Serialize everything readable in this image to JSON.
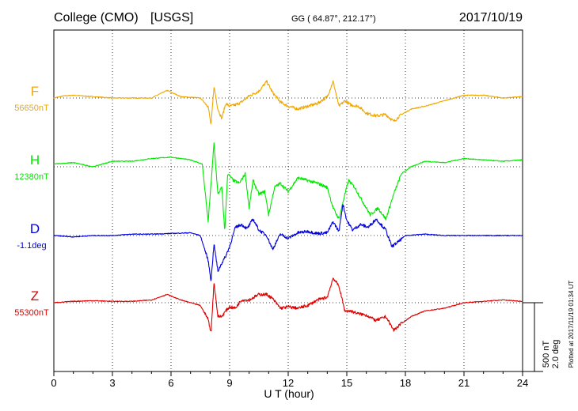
{
  "header": {
    "station": "College (CMO)",
    "source": "[USGS]",
    "coords": "GG ( 64.87°, 212.17°)",
    "date": "2017/10/19"
  },
  "footer": {
    "plotted": "Plotted at 2017/11/19 01:34 UT",
    "scale_nt": "500 nT",
    "scale_deg": "2.0 deg"
  },
  "chart_data": {
    "type": "line",
    "title": "College (CMO)  [USGS]",
    "xlabel": "U T (hour)",
    "xlim": [
      0,
      24
    ],
    "xticks": [
      "0",
      "3",
      "6",
      "9",
      "12",
      "15",
      "18",
      "21",
      "24"
    ],
    "grid": true,
    "series": [
      {
        "name": "F",
        "baseline_label": "56650nT",
        "color": "#f0a800",
        "x": [
          0,
          0.5,
          1,
          2,
          3,
          4,
          5,
          5.8,
          6.5,
          7.5,
          7.9,
          8.05,
          8.2,
          8.4,
          8.6,
          8.8,
          9.0,
          9.3,
          9.6,
          10.0,
          10.5,
          10.9,
          11.2,
          11.6,
          12.0,
          12.5,
          13.0,
          13.5,
          14.0,
          14.3,
          14.6,
          14.9,
          15.2,
          15.6,
          16.0,
          16.5,
          17.0,
          17.4,
          17.8,
          18.3,
          19.0,
          20.0,
          21.0,
          22.0,
          23.0,
          24.0
        ],
        "y": [
          0,
          15,
          20,
          10,
          0,
          0,
          0,
          55,
          10,
          0,
          -60,
          -200,
          85,
          -80,
          -150,
          -40,
          -60,
          -50,
          -30,
          15,
          50,
          120,
          40,
          -30,
          -60,
          -80,
          -60,
          -40,
          10,
          120,
          -60,
          -20,
          -50,
          -60,
          -110,
          -130,
          -120,
          -170,
          -120,
          -80,
          -60,
          -20,
          20,
          20,
          0,
          10
        ]
      },
      {
        "name": "H",
        "baseline_label": "12380nT",
        "color": "#00e800",
        "x": [
          0,
          1,
          2,
          3,
          4,
          5,
          6,
          7,
          7.6,
          7.9,
          8.05,
          8.2,
          8.4,
          8.6,
          8.75,
          8.9,
          9.2,
          9.5,
          9.8,
          10.0,
          10.2,
          10.5,
          10.8,
          11.0,
          11.3,
          11.6,
          12.0,
          12.5,
          13.0,
          13.5,
          14.0,
          14.3,
          14.6,
          14.9,
          15.1,
          15.4,
          15.8,
          16.2,
          16.6,
          17.0,
          17.4,
          17.8,
          18.3,
          19.0,
          20.0,
          21.0,
          22.0,
          23.0,
          24.0
        ],
        "y": [
          20,
          30,
          0,
          40,
          40,
          60,
          70,
          50,
          20,
          -400,
          -120,
          170,
          -200,
          -150,
          -470,
          -50,
          -100,
          -120,
          -50,
          -300,
          -100,
          -200,
          -180,
          -350,
          -150,
          -120,
          -180,
          -80,
          -100,
          -120,
          -150,
          -300,
          -380,
          -200,
          -100,
          -150,
          -250,
          -350,
          -300,
          -380,
          -200,
          -50,
          0,
          40,
          30,
          60,
          50,
          40,
          50
        ]
      },
      {
        "name": "D",
        "baseline_label": "-1.1deg",
        "color": "#0000e0",
        "x": [
          0,
          1,
          2,
          3,
          4,
          5,
          6,
          7,
          7.5,
          7.9,
          8.05,
          8.2,
          8.4,
          8.6,
          8.8,
          9.0,
          9.3,
          9.6,
          9.9,
          10.2,
          10.5,
          10.9,
          11.2,
          11.6,
          12.0,
          12.5,
          13.0,
          13.5,
          14.0,
          14.3,
          14.6,
          14.8,
          15.0,
          15.3,
          15.7,
          16.1,
          16.5,
          17.0,
          17.3,
          17.6,
          18.0,
          19.0,
          20.0,
          21.0,
          22.0,
          23.0,
          24.0
        ],
        "y": [
          0,
          -10,
          0,
          0,
          10,
          10,
          15,
          20,
          0,
          -180,
          -330,
          -60,
          -260,
          -200,
          -150,
          -80,
          60,
          80,
          50,
          120,
          40,
          0,
          -100,
          10,
          -20,
          20,
          30,
          15,
          20,
          100,
          30,
          230,
          110,
          40,
          80,
          60,
          120,
          40,
          -80,
          -50,
          0,
          10,
          0,
          0,
          0,
          0,
          0
        ]
      },
      {
        "name": "Z",
        "baseline_label": "55300nT",
        "color": "#e00000",
        "x": [
          0,
          1,
          2,
          3,
          4,
          5,
          5.8,
          6.5,
          7.5,
          7.9,
          8.05,
          8.2,
          8.4,
          8.6,
          8.8,
          9.0,
          9.3,
          9.6,
          10.0,
          10.5,
          10.9,
          11.2,
          11.6,
          12.0,
          12.5,
          13.0,
          13.5,
          14.0,
          14.3,
          14.6,
          14.9,
          15.2,
          15.6,
          16.0,
          16.5,
          17.0,
          17.4,
          17.8,
          18.3,
          19.0,
          20.0,
          21.0,
          22.0,
          23.0,
          24.0
        ],
        "y": [
          0,
          10,
          15,
          10,
          10,
          20,
          60,
          20,
          -20,
          -120,
          -220,
          150,
          -100,
          -100,
          -60,
          -30,
          -40,
          20,
          20,
          60,
          60,
          30,
          -40,
          -30,
          -40,
          -20,
          20,
          40,
          180,
          120,
          -60,
          -60,
          -80,
          -90,
          -130,
          -100,
          -200,
          -150,
          -100,
          -60,
          -40,
          0,
          10,
          20,
          10
        ]
      }
    ]
  }
}
